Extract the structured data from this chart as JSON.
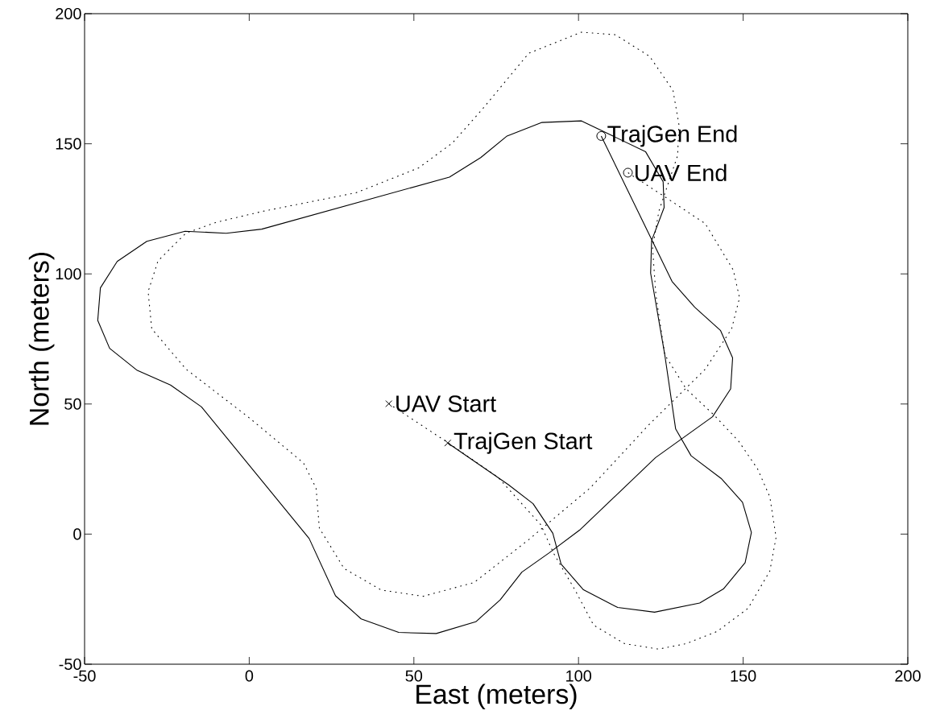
{
  "chart_data": {
    "type": "line",
    "xlabel": "East (meters)",
    "ylabel": "North (meters)",
    "xlim": [
      -50,
      200
    ],
    "ylim": [
      -50,
      200
    ],
    "xticks": [
      -50,
      0,
      50,
      100,
      150,
      200
    ],
    "yticks": [
      -50,
      0,
      50,
      100,
      150,
      200
    ],
    "grid": false,
    "series": [
      {
        "line_style": "solid",
        "color": "#000000",
        "x": [
          60.3,
          78.7,
          86.2,
          92.2,
          94.7,
          101.5,
          111.9,
          123.1,
          136.8,
          144.0,
          150.6,
          152.5,
          149.8,
          143.3,
          134.2,
          129.5,
          126.2,
          121.9,
          122.2,
          126.0,
          125.7,
          120.4,
          100.9,
          88.9,
          78.3,
          70.3,
          60.8,
          3.8,
          -7.0,
          -19.5,
          -31.1,
          -40.1,
          -45.2,
          -46.0,
          -42.4,
          -34.0,
          -23.9,
          -14.5,
          18.2,
          26.2,
          34.0,
          45.4,
          56.8,
          68.8,
          76.2,
          82.8,
          91.2,
          100.3,
          123.4,
          140.7,
          146.2,
          146.8,
          143.1,
          135.3,
          128.4,
          106.9
        ],
        "values": [
          35.0,
          19.0,
          11.7,
          0.3,
          -11.5,
          -21.4,
          -28.2,
          -30.0,
          -26.5,
          -21.1,
          -11.0,
          0.6,
          12.2,
          21.4,
          30.1,
          40.4,
          68.9,
          100.3,
          112.8,
          125.5,
          135.4,
          146.9,
          158.8,
          158.2,
          153.0,
          144.7,
          137.2,
          117.2,
          115.6,
          116.4,
          112.5,
          104.8,
          94.6,
          82.1,
          71.4,
          62.9,
          57.3,
          48.9,
          -1.7,
          -23.7,
          -32.6,
          -37.8,
          -38.2,
          -33.7,
          -25.3,
          -14.6,
          -7.1,
          1.5,
          29.4,
          45.1,
          55.8,
          67.7,
          78.3,
          87.2,
          97.1,
          153.0
        ]
      },
      {
        "line_style": "dotted",
        "color": "#000000",
        "x": [
          42.4,
          59.8,
          75.5,
          88.6,
          92.4,
          98.9,
          104.6,
          114.0,
          124.3,
          132.7,
          142.1,
          151.5,
          158.1,
          160.0,
          158.1,
          154.4,
          148.7,
          141.2,
          132.7,
          126.2,
          123.5,
          122.5,
          124.4,
          130.1,
          130.5,
          128.7,
          121.6,
          111.2,
          100.9,
          84.9,
          70.8,
          61.7,
          51.4,
          32.5,
          4.3,
          -9.8,
          -19.2,
          -27.7,
          -30.7,
          -29.6,
          -19.2,
          -0.4,
          16.5,
          20.3,
          21.3,
          28.8,
          40.1,
          52.8,
          68.3,
          85.0,
          103.6,
          121.5,
          138.5,
          146.5,
          148.9,
          147.0,
          138.5,
          127.2,
          115.0
        ],
        "values": [
          50.1,
          35.6,
          21.9,
          3.5,
          -7.3,
          -21.4,
          -35.0,
          -42.1,
          -44.2,
          -42.1,
          -37.4,
          -28.5,
          -14.2,
          -1.2,
          14.3,
          25.0,
          35.6,
          45.7,
          55.8,
          68.9,
          92.0,
          109.8,
          124.1,
          145.5,
          157.4,
          170.5,
          183.6,
          191.9,
          192.9,
          184.8,
          163.3,
          150.3,
          140.7,
          131.2,
          124.1,
          119.9,
          115.7,
          105.0,
          93.2,
          78.9,
          63.4,
          45.1,
          27.3,
          17.7,
          2.3,
          -13.2,
          -21.5,
          -23.9,
          -18.6,
          -2.0,
          17.8,
          42.2,
          63.4,
          78.9,
          90.8,
          101.5,
          119.3,
          128.8,
          138.9
        ]
      },
      {
        "type": "scatter",
        "marker": "cross",
        "color": "#000000",
        "x": [
          42.4,
          60.3
        ],
        "values": [
          50.1,
          35.0
        ]
      },
      {
        "type": "scatter",
        "marker": "circle",
        "color": "#000000",
        "x": [
          106.9,
          115.0
        ],
        "values": [
          153.0,
          138.9
        ]
      }
    ],
    "annotations": [
      {
        "text": "UAV Start",
        "x": 42.4,
        "y": 50.1
      },
      {
        "text": "TrajGen Start",
        "x": 60.3,
        "y": 35.0
      },
      {
        "text": "TrajGen End",
        "x": 106.9,
        "y": 153.0
      },
      {
        "text": "UAV End",
        "x": 115.0,
        "y": 138.9
      }
    ]
  }
}
